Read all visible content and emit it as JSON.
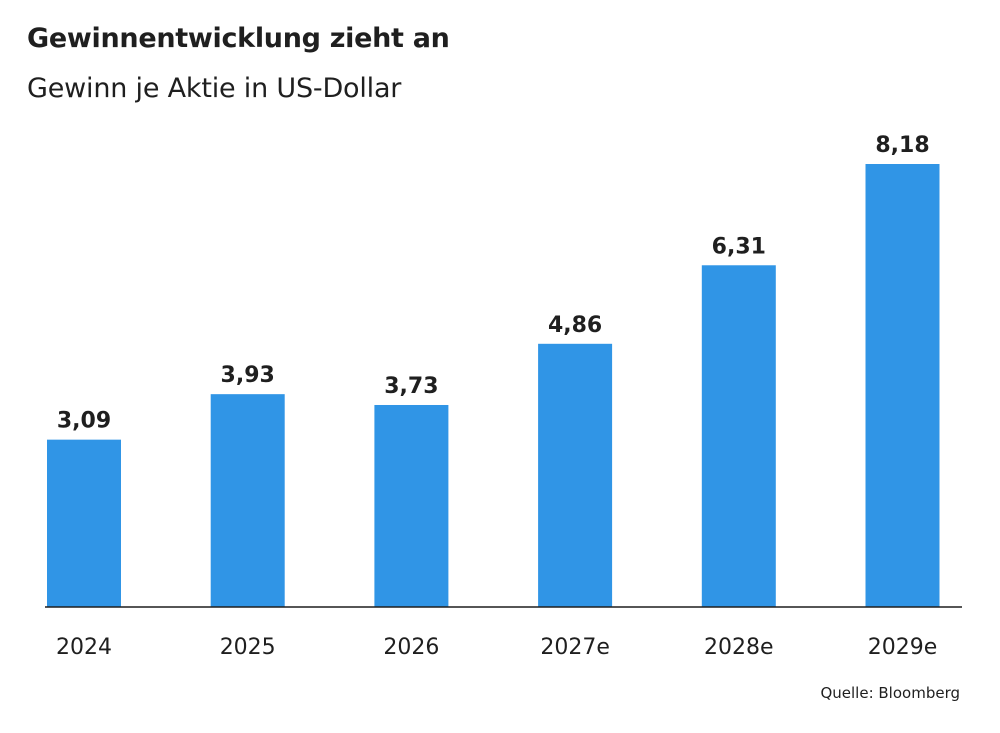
{
  "chart_data": {
    "type": "bar",
    "title": "Gewinnentwicklung zieht an",
    "subtitle": "Gewinn je Aktie in US-Dollar",
    "categories": [
      "2024",
      "2025",
      "2026",
      "2027e",
      "2028e",
      "2029e"
    ],
    "values": [
      3.09,
      3.93,
      3.73,
      4.86,
      6.31,
      8.18
    ],
    "value_labels": [
      "3,09",
      "3,93",
      "3,73",
      "4,86",
      "6,31",
      "8,18"
    ],
    "ylim": [
      0,
      8.18
    ],
    "grid": false,
    "bar_color": "#3095e6",
    "source": "Quelle: Bloomberg"
  }
}
